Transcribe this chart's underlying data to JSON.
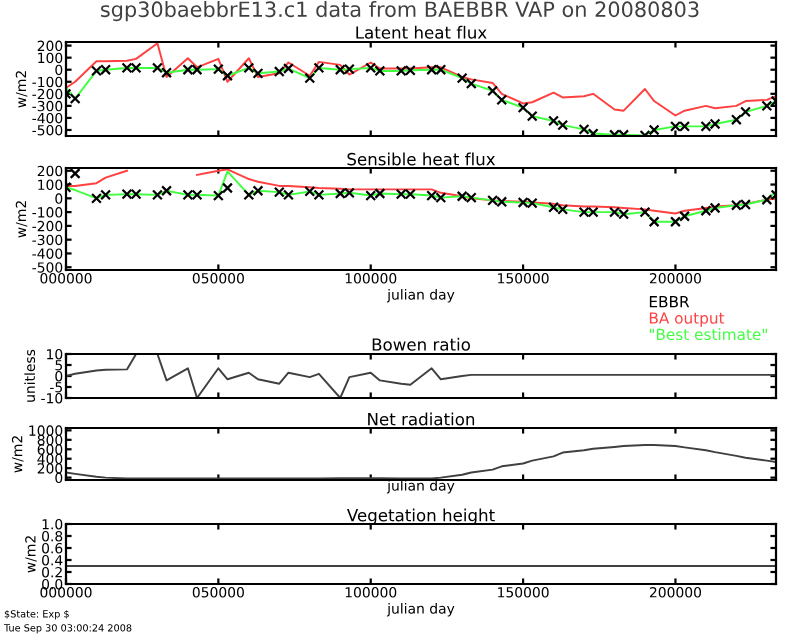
{
  "chart_data": [
    {
      "type": "line",
      "title": "sgp30baebbrE13.c1 data from BAEBBR VAP on 20080803",
      "subtitle": "Latent heat flux",
      "ylabel": "w/m2",
      "tick_labels": "y",
      "x": [
        0,
        3000,
        10000,
        13000,
        20000,
        23000,
        30000,
        33000,
        40000,
        43000,
        50000,
        53000,
        60000,
        63000,
        70000,
        73000,
        80000,
        83000,
        90000,
        93000,
        100000,
        103000,
        110000,
        113000,
        120000,
        123000,
        130000,
        133000,
        140000,
        143000,
        150000,
        153000,
        160000,
        163000,
        170000,
        173000,
        180000,
        183000,
        190000,
        193000,
        200000,
        203000,
        210000,
        213000,
        220000,
        223000,
        230000,
        233000
      ],
      "xlim": [
        0,
        233000
      ],
      "xticks": [
        {
          "value": 0,
          "label": null
        },
        {
          "value": 50000,
          "label": null
        },
        {
          "value": 100000,
          "label": null
        },
        {
          "value": 150000,
          "label": null
        },
        {
          "value": 200000,
          "label": null
        }
      ],
      "ylim": [
        -550,
        230
      ],
      "yticks": [
        -500,
        -400,
        -300,
        -200,
        -100,
        0,
        100,
        200
      ],
      "series": [
        {
          "color": "#ff4040",
          "values": [
            -150,
            -100,
            70,
            70,
            75,
            90,
            220,
            -60,
            95,
            20,
            90,
            -100,
            95,
            -60,
            -30,
            60,
            -50,
            65,
            40,
            -40,
            60,
            10,
            10,
            10,
            20,
            20,
            -60,
            -80,
            -110,
            -200,
            -280,
            -270,
            -190,
            -230,
            -220,
            -200,
            -330,
            -340,
            -160,
            -260,
            -380,
            -340,
            -300,
            -320,
            -300,
            -260,
            -250,
            -220
          ]
        },
        {
          "color": "#40ff40",
          "values": [
            -150,
            -240,
            -10,
            0,
            15,
            15,
            15,
            -25,
            0,
            0,
            5,
            -50,
            15,
            -30,
            -15,
            10,
            -70,
            15,
            0,
            5,
            15,
            -10,
            -10,
            -5,
            0,
            0,
            -70,
            -115,
            -175,
            -250,
            -315,
            -385,
            -425,
            -460,
            -495,
            -530,
            -540,
            -540,
            -545,
            -500,
            -470,
            -470,
            -470,
            -450,
            -415,
            -350,
            -300,
            -260
          ]
        },
        {
          "type": "scatter",
          "marker": "cross",
          "color": "#000000",
          "values": [
            -200,
            -240,
            -10,
            0,
            15,
            15,
            15,
            -25,
            0,
            0,
            5,
            -50,
            15,
            -30,
            -15,
            10,
            -70,
            15,
            0,
            5,
            15,
            -10,
            -10,
            -5,
            0,
            0,
            -70,
            -115,
            -175,
            -250,
            -315,
            -385,
            -425,
            -460,
            -495,
            -530,
            -540,
            -540,
            -545,
            -500,
            -470,
            -470,
            -470,
            -450,
            -415,
            -350,
            -300,
            -260
          ]
        }
      ]
    },
    {
      "type": "line",
      "title": "Sensible heat flux",
      "ylabel": "w/m2",
      "xlabel": "julian day",
      "legend": "bottom right",
      "x": [
        0,
        3000,
        10000,
        13000,
        20000,
        23000,
        30000,
        33000,
        40000,
        43000,
        50000,
        53000,
        60000,
        63000,
        70000,
        73000,
        80000,
        83000,
        90000,
        93000,
        100000,
        103000,
        110000,
        113000,
        120000,
        123000,
        130000,
        133000,
        140000,
        143000,
        150000,
        153000,
        160000,
        163000,
        170000,
        173000,
        180000,
        183000,
        190000,
        193000,
        200000,
        203000,
        210000,
        213000,
        220000,
        223000,
        230000,
        233000
      ],
      "xlim": [
        0,
        233000
      ],
      "xticks": [
        {
          "value": 0,
          "label": "000000"
        },
        {
          "value": 50000,
          "label": "050000"
        },
        {
          "value": 100000,
          "label": "100000"
        },
        {
          "value": 150000,
          "label": "150000"
        },
        {
          "value": 200000,
          "label": "200000"
        }
      ],
      "ylim": [
        -520,
        220
      ],
      "yticks": [
        -500,
        -400,
        -300,
        -200,
        -100,
        0,
        100,
        200
      ],
      "series": [
        {
          "type": "scatter",
          "marker": "cross",
          "name": "EBBR",
          "color": "#000000",
          "values": [
            80,
            180,
            0,
            25,
            30,
            30,
            25,
            55,
            25,
            25,
            20,
            75,
            25,
            55,
            45,
            25,
            50,
            25,
            35,
            40,
            20,
            35,
            30,
            30,
            20,
            5,
            15,
            5,
            -15,
            -25,
            -30,
            -35,
            -65,
            -80,
            -100,
            -100,
            -100,
            -115,
            -100,
            -170,
            -170,
            -130,
            -90,
            -70,
            -50,
            -45,
            -10,
            25
          ]
        },
        {
          "name": "BA output",
          "color": "#ff4040",
          "values": [
            90,
            90,
            110,
            150,
            200,
            null,
            null,
            null,
            null,
            170,
            200,
            210,
            140,
            120,
            90,
            90,
            80,
            75,
            70,
            65,
            65,
            65,
            65,
            65,
            65,
            40,
            15,
            0,
            -15,
            -20,
            -25,
            -30,
            -40,
            -50,
            -60,
            -60,
            -65,
            -70,
            -80,
            -90,
            -110,
            -90,
            -70,
            -60,
            -50,
            -40,
            -10,
            0
          ]
        },
        {
          "name": "\"Best estimate\"",
          "color": "#40ff40",
          "values": [
            80,
            60,
            0,
            25,
            30,
            30,
            25,
            55,
            25,
            25,
            20,
            195,
            25,
            55,
            45,
            25,
            50,
            25,
            35,
            40,
            20,
            35,
            30,
            30,
            20,
            5,
            15,
            5,
            -15,
            -25,
            -30,
            -35,
            -65,
            -80,
            -100,
            -100,
            -100,
            -115,
            -100,
            -170,
            -170,
            -130,
            -90,
            -70,
            -50,
            -45,
            -10,
            50
          ]
        }
      ]
    },
    {
      "type": "line",
      "title": "Bowen ratio",
      "ylabel": "unitless",
      "tick_labels": "y",
      "x": [
        0,
        3000,
        10000,
        13000,
        20000,
        23000,
        30000,
        33000,
        40000,
        43000,
        50000,
        53000,
        60000,
        63000,
        70000,
        73000,
        80000,
        83000,
        90000,
        93000,
        100000,
        103000,
        110000,
        113000,
        120000,
        123000,
        130000,
        133000,
        140000,
        143000,
        150000,
        153000,
        160000,
        163000,
        170000,
        173000,
        180000,
        183000,
        190000,
        193000,
        200000,
        203000,
        210000,
        213000,
        220000,
        223000,
        230000,
        233000
      ],
      "xlim": [
        0,
        233000
      ],
      "xticks": [
        {
          "value": 0,
          "label": null
        },
        {
          "value": 50000,
          "label": null
        },
        {
          "value": 100000,
          "label": null
        },
        {
          "value": 150000,
          "label": null
        },
        {
          "value": 200000,
          "label": null
        }
      ],
      "ylim": [
        -10,
        10
      ],
      "yticks": [
        -10,
        -5,
        0,
        5,
        10
      ],
      "series": [
        {
          "color": "#404040",
          "values": [
            0,
            1,
            2.5,
            2.8,
            3,
            10,
            10,
            -2,
            3.5,
            -10,
            3.5,
            -1.5,
            1.5,
            -1.5,
            -3.5,
            1.5,
            -0.5,
            1,
            -10,
            -0.5,
            1.5,
            -2,
            -3.5,
            -4,
            3.5,
            -1.5,
            0,
            0.5,
            0.5,
            0.5,
            0.5,
            0.5,
            0.5,
            0.5,
            0.5,
            0.5,
            0.5,
            0.5,
            0.5,
            0.5,
            0.5,
            0.5,
            0.5,
            0.5,
            0.5,
            0.5,
            0.5,
            0.5
          ]
        }
      ]
    },
    {
      "type": "line",
      "title": "Net radiation",
      "ylabel": "w/m2",
      "xlabel": "julian day",
      "tick_labels": "y",
      "x": [
        0,
        3000,
        10000,
        13000,
        20000,
        23000,
        30000,
        33000,
        40000,
        43000,
        50000,
        53000,
        60000,
        63000,
        70000,
        73000,
        80000,
        83000,
        90000,
        93000,
        100000,
        103000,
        110000,
        113000,
        120000,
        123000,
        130000,
        133000,
        140000,
        143000,
        150000,
        153000,
        160000,
        163000,
        170000,
        173000,
        180000,
        183000,
        190000,
        193000,
        200000,
        203000,
        210000,
        213000,
        220000,
        223000,
        230000,
        233000
      ],
      "xlim": [
        0,
        233000
      ],
      "xticks": [
        {
          "value": 0,
          "label": null
        },
        {
          "value": 50000,
          "label": null
        },
        {
          "value": 100000,
          "label": null
        },
        {
          "value": 150000,
          "label": null
        },
        {
          "value": 200000,
          "label": null
        }
      ],
      "ylim": [
        -50,
        1050
      ],
      "yticks": [
        0,
        200,
        400,
        600,
        800,
        1000
      ],
      "series": [
        {
          "color": "#404040",
          "values": [
            110,
            80,
            20,
            0,
            -20,
            -20,
            -20,
            -20,
            -20,
            -20,
            -20,
            -20,
            -20,
            -20,
            -20,
            -20,
            -20,
            -20,
            -10,
            -10,
            -10,
            -10,
            -20,
            -20,
            -20,
            0,
            60,
            110,
            170,
            240,
            300,
            360,
            450,
            530,
            580,
            610,
            650,
            670,
            690,
            690,
            670,
            640,
            580,
            540,
            460,
            420,
            360,
            330
          ]
        }
      ]
    },
    {
      "type": "line",
      "title": "Vegetation height",
      "ylabel": "w/m2",
      "xlabel": "julian day",
      "x": [
        0,
        233000
      ],
      "xlim": [
        0,
        233000
      ],
      "xticks": [
        {
          "value": 0,
          "label": "000000"
        },
        {
          "value": 50000,
          "label": "050000"
        },
        {
          "value": 100000,
          "label": "100000"
        },
        {
          "value": 150000,
          "label": "150000"
        },
        {
          "value": 200000,
          "label": "200000"
        }
      ],
      "ylim": [
        0,
        1
      ],
      "yticks": [
        {
          "value": 0,
          "label": "0.0"
        },
        {
          "value": 0.2,
          "label": "0.2"
        },
        {
          "value": 0.4,
          "label": "0.4"
        },
        {
          "value": 0.6,
          "label": "0.6"
        },
        {
          "value": 0.8,
          "label": "0.8"
        },
        {
          "value": 1,
          "label": "1.0"
        }
      ],
      "series": [
        {
          "color": "#404040",
          "values": [
            0.3,
            0.3
          ]
        }
      ],
      "annotations": [
        "$State: Exp $",
        "Tue Sep 30 03:00:24 2008"
      ]
    }
  ]
}
